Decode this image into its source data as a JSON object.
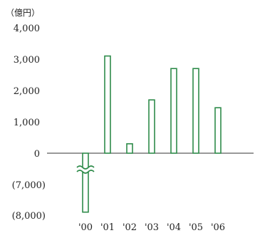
{
  "chart_data": {
    "type": "bar",
    "unit_label": "（億円）",
    "categories": [
      "'00",
      "'01",
      "'02",
      "'03",
      "'04",
      "'05",
      "'06"
    ],
    "values": [
      -7900,
      3100,
      300,
      1700,
      2700,
      2700,
      1450
    ],
    "y_ticks_upper": [
      "4,000",
      "3,000",
      "2,000",
      "1,000",
      "0"
    ],
    "y_ticks_lower": [
      "(7,000)",
      "(8,000)"
    ],
    "ylim": [
      -8000,
      4000
    ],
    "axis_break": {
      "between": [
        -1000,
        -7000
      ]
    },
    "bar_color": "#2e8b4a",
    "bar_fill": "#ffffff"
  }
}
